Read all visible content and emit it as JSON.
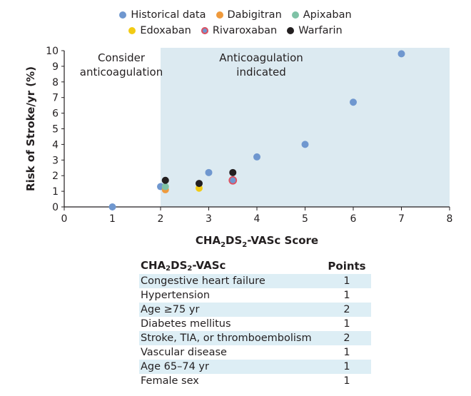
{
  "colors": {
    "historical": "#6f97cf",
    "dabigitran": "#ef9a3c",
    "apixaban": "#7fc2a6",
    "edoxaban": "#f2cb14",
    "rivaroxaban": "#e2505f",
    "rivaroxaban_inner": "#6f97cf",
    "warfarin": "#231f20",
    "indicated_region": "#dceaf1",
    "axis": "#231f20"
  },
  "chart_data": {
    "type": "scatter",
    "xlabel_parts": [
      "CHA",
      "2",
      "DS",
      "2",
      "-VASc Score"
    ],
    "ylabel": "Risk of Stroke/yr (%)",
    "xlim": [
      0,
      8
    ],
    "ylim": [
      0,
      10
    ],
    "x_ticks": [
      "0",
      "1",
      "2",
      "3",
      "4",
      "5",
      "6",
      "7",
      "8"
    ],
    "y_ticks": [
      "0",
      "1",
      "2",
      "3",
      "4",
      "5",
      "6",
      "7",
      "8",
      "9",
      "10"
    ],
    "legend_rows": [
      [
        "Historical data",
        "Dabigitran",
        "Apixaban"
      ],
      [
        "Edoxaban",
        "Rivaroxaban",
        "Warfarin"
      ]
    ],
    "series": [
      {
        "name": "Historical data",
        "key": "historical",
        "x": [
          1,
          2,
          3,
          4,
          5,
          6,
          7
        ],
        "y": [
          0.0,
          1.3,
          2.2,
          3.2,
          4.0,
          6.7,
          9.8
        ]
      },
      {
        "name": "Dabigitran",
        "key": "dabigitran",
        "x": [
          2.1
        ],
        "y": [
          1.1
        ]
      },
      {
        "name": "Apixaban",
        "key": "apixaban",
        "x": [
          2.1
        ],
        "y": [
          1.3
        ]
      },
      {
        "name": "Edoxaban",
        "key": "edoxaban",
        "x": [
          2.8
        ],
        "y": [
          1.2
        ]
      },
      {
        "name": "Rivaroxaban",
        "key": "rivaroxaban",
        "x": [
          3.5
        ],
        "y": [
          1.7
        ]
      },
      {
        "name": "Warfarin",
        "key": "warfarin",
        "x": [
          2.1,
          2.8,
          3.5
        ],
        "y": [
          1.7,
          1.5,
          2.2
        ]
      }
    ],
    "regions": [
      {
        "label_lines": [
          "Consider",
          "anticoagulation"
        ],
        "x_range": [
          0,
          2
        ],
        "shaded": false
      },
      {
        "label_lines": [
          "Anticoagulation",
          "indicated"
        ],
        "x_range": [
          2,
          8
        ],
        "shaded": true
      }
    ]
  },
  "table": {
    "header_parts": [
      "CHA",
      "2",
      "DS",
      "2",
      "-VASc"
    ],
    "points_header": "Points",
    "rows": [
      {
        "factor": "Congestive heart failure",
        "points": "1"
      },
      {
        "factor": "Hypertension",
        "points": "1"
      },
      {
        "factor": "Age ≥75 yr",
        "points": "2"
      },
      {
        "factor": "Diabetes mellitus",
        "points": "1"
      },
      {
        "factor": "Stroke, TIA, or thromboembolism",
        "points": "2"
      },
      {
        "factor": "Vascular disease",
        "points": "1"
      },
      {
        "factor": "Age 65–74 yr",
        "points": "1"
      },
      {
        "factor": "Female sex",
        "points": "1"
      }
    ]
  }
}
